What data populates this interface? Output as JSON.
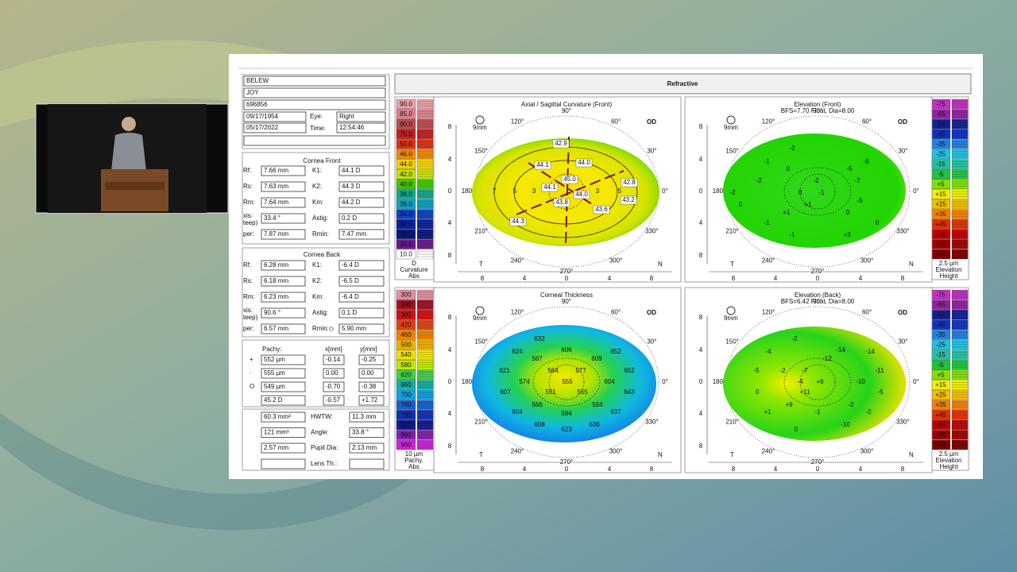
{
  "header": "Refractive",
  "patient": {
    "last_name": "BELEW",
    "first_name": "JOY",
    "id": "696856",
    "dob": "09/17/1954",
    "eye_label": "Eye:",
    "eye": "Right",
    "exam_date": "05/17/2022",
    "time_label": "Time:",
    "time": "12:54:46"
  },
  "cornea_front": {
    "title": "Cornea Front",
    "rows": [
      [
        "Rf:",
        "7.66 mm",
        "K1:",
        "44.1 D"
      ],
      [
        "Rs:",
        "7.63 mm",
        "K2:",
        "44.3 D"
      ],
      [
        "Rm:",
        "7.64 mm",
        "Km:",
        "44.2 D"
      ],
      [
        "xis:",
        "33.4 °",
        "Astig:",
        "0.2 D"
      ],
      [
        "per:",
        "7.87 mm",
        "Rmin:",
        "7.47 mm"
      ]
    ],
    "sublabel": "teep)"
  },
  "cornea_back": {
    "title": "Cornea Back",
    "rows": [
      [
        "Rf:",
        "6.28 mm",
        "K1:",
        "-6.4 D"
      ],
      [
        "Rs:",
        "6.18 mm",
        "K2:",
        "-6.5 D"
      ],
      [
        "Rm:",
        "6.23 mm",
        "Km:",
        "-6.4 D"
      ],
      [
        "xis:",
        "90.6 °",
        "Astig:",
        "0.1 D"
      ],
      [
        "per:",
        "6.57 mm",
        "Rmin:◇",
        "5.90 mm"
      ]
    ],
    "sublabel": "teep)"
  },
  "pachy": {
    "header": [
      "Pachy:",
      "x[mm]",
      "y[mm]"
    ],
    "symbols": [
      "+",
      "·",
      "O"
    ],
    "rows": [
      [
        "552 µm",
        "-0.14",
        "-0.25"
      ],
      [
        "555 µm",
        "0.00",
        "0.00"
      ],
      [
        "549 µm",
        "-0.70",
        "-0.38"
      ],
      [
        "45.2 D",
        "-0.57",
        "+1.72"
      ]
    ]
  },
  "volume": {
    "rows": [
      [
        "60.3 mm³",
        "HWTW:",
        "11.3 mm"
      ],
      [
        "121 mm³",
        "Angle:",
        "33.8 °"
      ],
      [
        "2.57 mm",
        "Pupil Dia:",
        "2.13 mm"
      ]
    ],
    "lens_label": "Lens Th.:"
  },
  "scales": [
    {
      "values": [
        "90.0",
        "85.0",
        "80.0",
        "75.0",
        "50.0",
        "46.0",
        "44.0",
        "42.0",
        "40.0",
        "38.0",
        "36.0",
        "34.0",
        "32.0",
        "30.0",
        "20.0",
        "10.0"
      ],
      "footer": [
        "D",
        "Curvature",
        "Abs"
      ]
    },
    {
      "values": [
        "-75",
        "-65",
        "-55",
        "-45",
        "-35",
        "-25",
        "-15",
        "-5",
        "+5",
        "+15",
        "+25",
        "+35",
        "+45",
        "+55",
        "+65",
        "+75"
      ],
      "footer": [
        "2.5 µm",
        "Elevation",
        "Height"
      ]
    },
    {
      "values": [
        "300",
        "340",
        "380",
        "420",
        "460",
        "500",
        "540",
        "580",
        "620",
        "660",
        "700",
        "740",
        "780",
        "820",
        "860",
        "900"
      ],
      "footer": [
        "10 µm",
        "Pachy.",
        "Abs"
      ]
    },
    {
      "values": [
        "-75",
        "-65",
        "-55",
        "-45",
        "-35",
        "-25",
        "-15",
        "-5",
        "+5",
        "+15",
        "+25",
        "+35",
        "+45",
        "+55",
        "+65",
        "+75"
      ],
      "footer": [
        "2.5 µm",
        "Elevation",
        "Height"
      ]
    }
  ],
  "maps": [
    {
      "title": "Axial / Sagittal Curvature (Front)",
      "eye": "OD",
      "zoom": "9mm",
      "left": "T",
      "right": "N",
      "ticks": [
        "8",
        "4",
        "0",
        "4",
        "8"
      ],
      "angles": [
        "0°",
        "30°",
        "60°",
        "90°",
        "120°",
        "150°",
        "180°",
        "210°",
        "240°",
        "270°",
        "300°",
        "330°"
      ],
      "labels": [
        "42.9",
        "44.1",
        "44.0",
        "45.0",
        "44.1",
        "44.0",
        "43.8",
        "42.8",
        "43.2",
        "43.6",
        "44.3",
        "7",
        "5",
        "3",
        "3",
        "5"
      ]
    },
    {
      "title": "Elevation (Front)",
      "subtitle": "BFS=7.70 Float, Dia=8.00",
      "eye": "OD",
      "zoom": "9mm",
      "left": "T",
      "right": "N",
      "ticks": [
        "8",
        "4",
        "0",
        "4",
        "8"
      ],
      "angles": [
        "0°",
        "30°",
        "60°",
        "90°",
        "120°",
        "150°",
        "180°",
        "210°",
        "240°",
        "270°",
        "300°",
        "330°"
      ],
      "labels": [
        "-2",
        "-9",
        "-1",
        "0",
        "-5",
        "-7",
        "-2",
        "-2",
        "-2",
        "0",
        "-1",
        "0",
        "+1",
        "-5",
        "+1",
        "0",
        "-1",
        "-1",
        "+3",
        "0"
      ]
    },
    {
      "title": "Corneal Thickness",
      "eye": "OD",
      "zoom": "9mm",
      "left": "T",
      "right": "N",
      "ticks": [
        "8",
        "4",
        "0",
        "4",
        "8"
      ],
      "angles": [
        "0°",
        "30°",
        "60°",
        "90°",
        "120°",
        "150°",
        "180°",
        "210°",
        "240°",
        "270°",
        "300°",
        "330°"
      ],
      "labels": [
        "632",
        "624",
        "606",
        "652",
        "587",
        "609",
        "621",
        "564",
        "577",
        "652",
        "574",
        "555",
        "604",
        "607",
        "551",
        "565",
        "643",
        "568",
        "594",
        "604",
        "584",
        "637",
        "608",
        "623",
        "638"
      ]
    },
    {
      "title": "Elevation (Back)",
      "subtitle": "BFS=6.42 Float, Dia=8.00",
      "eye": "OD",
      "zoom": "9mm",
      "left": "T",
      "right": "N",
      "ticks": [
        "8",
        "4",
        "0",
        "4",
        "8"
      ],
      "angles": [
        "0°",
        "30°",
        "60°",
        "90°",
        "120°",
        "150°",
        "180°",
        "210°",
        "240°",
        "270°",
        "300°",
        "330°"
      ],
      "labels": [
        "-2",
        "-4",
        "-14",
        "-14",
        "-12",
        "-5",
        "-2",
        "-7",
        "-11",
        "-4",
        "+6",
        "-10",
        "0",
        "+11",
        "-5",
        "+9",
        "-2",
        "+1",
        "-1",
        "-2",
        "0",
        "-10"
      ]
    }
  ]
}
